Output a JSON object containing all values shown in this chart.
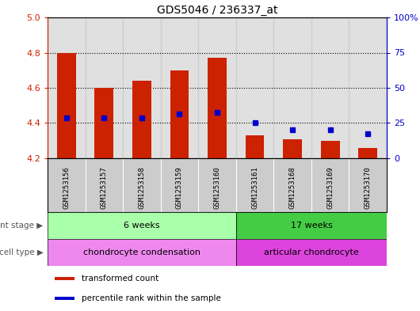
{
  "title": "GDS5046 / 236337_at",
  "samples": [
    "GSM1253156",
    "GSM1253157",
    "GSM1253158",
    "GSM1253159",
    "GSM1253160",
    "GSM1253161",
    "GSM1253168",
    "GSM1253169",
    "GSM1253170"
  ],
  "transformed_count": [
    4.8,
    4.6,
    4.64,
    4.7,
    4.77,
    4.33,
    4.31,
    4.3,
    4.26
  ],
  "percentile_rank_value": [
    4.43,
    4.43,
    4.43,
    4.45,
    4.46,
    4.4,
    4.36,
    4.36,
    4.34
  ],
  "ylim": [
    4.2,
    5.0
  ],
  "yticks": [
    4.2,
    4.4,
    4.6,
    4.8,
    5.0
  ],
  "y2ticks_pct": [
    0,
    25,
    50,
    75,
    100
  ],
  "y2tick_labels": [
    "0",
    "25",
    "50",
    "75",
    "100%"
  ],
  "bar_color": "#cc2200",
  "dot_color": "#0000cc",
  "bar_bottom": 4.2,
  "development_stage_groups": [
    {
      "label": "6 weeks",
      "start": 0,
      "end": 5,
      "color": "#aaffaa"
    },
    {
      "label": "17 weeks",
      "start": 5,
      "end": 9,
      "color": "#44cc44"
    }
  ],
  "cell_type_groups": [
    {
      "label": "chondrocyte condensation",
      "start": 0,
      "end": 5,
      "color": "#ee88ee"
    },
    {
      "label": "articular chondrocyte",
      "start": 5,
      "end": 9,
      "color": "#dd44dd"
    }
  ],
  "legend_items": [
    {
      "color": "#cc2200",
      "label": "transformed count"
    },
    {
      "color": "#0000cc",
      "label": "percentile rank within the sample"
    }
  ],
  "bar_width": 0.5,
  "dot_size": 30,
  "col_bg_color": "#cccccc"
}
